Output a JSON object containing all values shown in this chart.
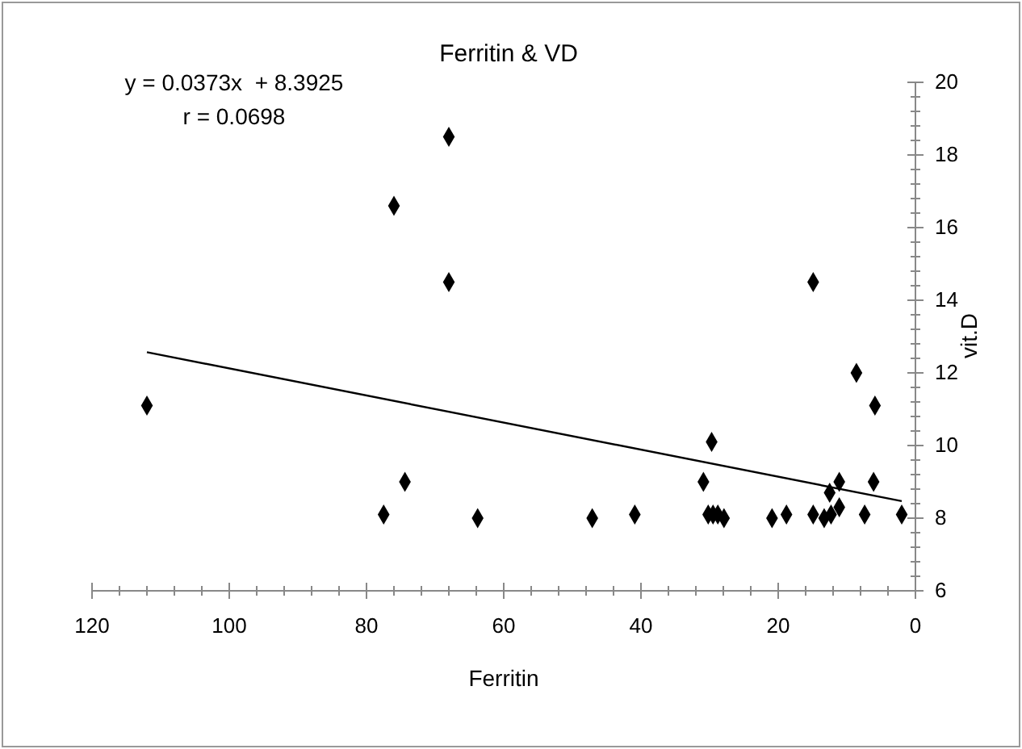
{
  "chart_data": {
    "type": "scatter",
    "title": "Ferritin & VD",
    "xlabel": "Ferritin",
    "ylabel": "vit.D",
    "annotations": [
      "y = 0.0373x  + 8.3925",
      "r = 0.0698"
    ],
    "xlim": [
      120,
      0
    ],
    "xticks": [
      120,
      {
        "value": 116,
        "label": null
      },
      {
        "value": 112,
        "label": null
      },
      {
        "value": 108,
        "label": null
      },
      {
        "value": 104,
        "label": null
      },
      100,
      {
        "value": 96,
        "label": null
      },
      {
        "value": 92,
        "label": null
      },
      {
        "value": 88,
        "label": null
      },
      {
        "value": 84,
        "label": null
      },
      80,
      {
        "value": 76,
        "label": null
      },
      {
        "value": 72,
        "label": null
      },
      {
        "value": 68,
        "label": null
      },
      {
        "value": 64,
        "label": null
      },
      60,
      {
        "value": 56,
        "label": null
      },
      {
        "value": 52,
        "label": null
      },
      {
        "value": 48,
        "label": null
      },
      {
        "value": 44,
        "label": null
      },
      40,
      {
        "value": 36,
        "label": null
      },
      {
        "value": 32,
        "label": null
      },
      {
        "value": 28,
        "label": null
      },
      {
        "value": 24,
        "label": null
      },
      20,
      {
        "value": 16,
        "label": null
      },
      {
        "value": 12,
        "label": null
      },
      {
        "value": 8,
        "label": null
      },
      {
        "value": 4,
        "label": null
      },
      0
    ],
    "ylim": [
      6,
      20
    ],
    "yticks": [
      6,
      {
        "value": 6.4,
        "label": null
      },
      {
        "value": 6.8,
        "label": null
      },
      {
        "value": 7.2,
        "label": null
      },
      {
        "value": 7.6,
        "label": null
      },
      8,
      {
        "value": 8.4,
        "label": null
      },
      {
        "value": 8.8,
        "label": null
      },
      {
        "value": 9.2,
        "label": null
      },
      {
        "value": 9.6,
        "label": null
      },
      10,
      {
        "value": 10.4,
        "label": null
      },
      {
        "value": 10.8,
        "label": null
      },
      {
        "value": 11.2,
        "label": null
      },
      {
        "value": 11.6,
        "label": null
      },
      12,
      {
        "value": 12.4,
        "label": null
      },
      {
        "value": 12.8,
        "label": null
      },
      {
        "value": 13.2,
        "label": null
      },
      {
        "value": 13.6,
        "label": null
      },
      14,
      {
        "value": 14.4,
        "label": null
      },
      {
        "value": 14.8,
        "label": null
      },
      {
        "value": 15.2,
        "label": null
      },
      {
        "value": 15.6,
        "label": null
      },
      16,
      {
        "value": 16.4,
        "label": null
      },
      {
        "value": 16.8,
        "label": null
      },
      {
        "value": 17.2,
        "label": null
      },
      {
        "value": 17.6,
        "label": null
      },
      18,
      {
        "value": 18.4,
        "label": null
      },
      {
        "value": 18.8,
        "label": null
      },
      {
        "value": 19.2,
        "label": null
      },
      {
        "value": 19.6,
        "label": null
      },
      20
    ],
    "grid": false,
    "marker": "diamond",
    "series": [
      {
        "color": "#000000",
        "x": [
          112,
          68,
          76,
          68,
          74.4,
          77.5,
          63.8,
          47.1,
          40.9,
          30.9,
          29.7,
          30.2,
          29.5,
          28.8,
          27.9,
          20.9,
          18.8,
          14.9,
          14.9,
          13.3,
          12.3,
          12.5,
          11.1,
          11.1,
          8.6,
          7.4,
          6.1,
          5.9,
          2.0
        ],
        "values": [
          11.1,
          18.5,
          16.6,
          14.5,
          9.0,
          8.1,
          8.0,
          8.0,
          8.1,
          9.0,
          10.1,
          8.1,
          8.1,
          8.1,
          8.0,
          8.0,
          8.1,
          14.5,
          8.1,
          8.0,
          8.1,
          8.7,
          9.0,
          8.3,
          12.0,
          8.1,
          9.0,
          11.1,
          8.1
        ]
      },
      {
        "type": "line",
        "color": "#000000",
        "x": [
          112,
          2
        ],
        "values": [
          12.57,
          8.47
        ],
        "marker": "none",
        "line_style": "solid"
      }
    ]
  }
}
